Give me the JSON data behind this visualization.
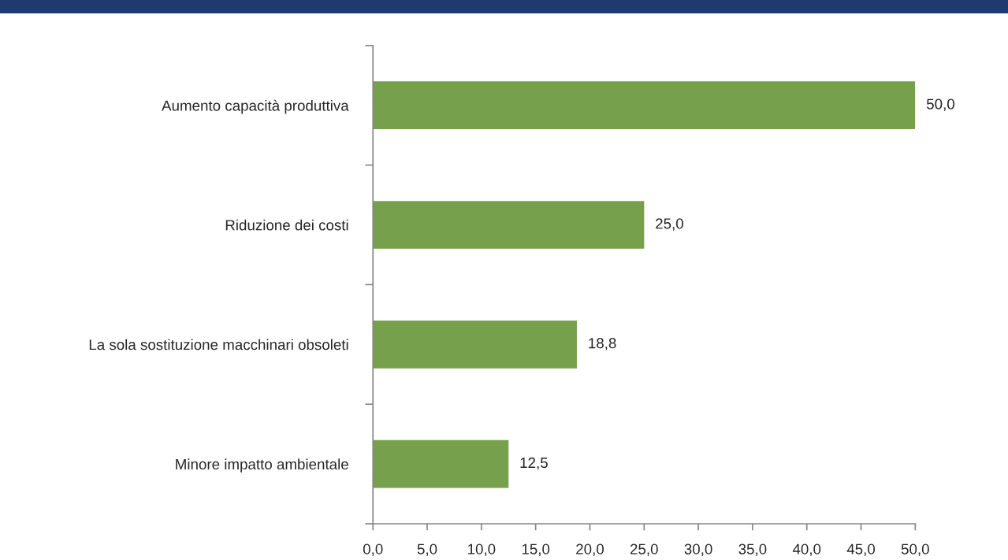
{
  "chart_data": {
    "type": "bar",
    "orientation": "horizontal",
    "categories": [
      "Aumento capacità produttiva",
      "Riduzione dei costi",
      "La sola sostituzione macchinari obsoleti",
      "Minore impatto ambientale"
    ],
    "values": [
      50.0,
      25.0,
      18.8,
      12.5
    ],
    "color": "#77a04c",
    "value_labels": [
      "50,0",
      "25,0",
      "18,8",
      "12,5"
    ],
    "xlim": [
      0,
      50
    ],
    "xticks": [
      {
        "value": 0,
        "label": "0,0"
      },
      {
        "value": 5,
        "label": "5,0"
      },
      {
        "value": 10,
        "label": "10,0"
      },
      {
        "value": 15,
        "label": "15,0"
      },
      {
        "value": 20,
        "label": "20,0"
      },
      {
        "value": 25,
        "label": "25,0"
      },
      {
        "value": 30,
        "label": "30,0"
      },
      {
        "value": 35,
        "label": "35,0"
      },
      {
        "value": 40,
        "label": "40,0"
      },
      {
        "value": 45,
        "label": "45,0"
      },
      {
        "value": 50,
        "label": "50,0"
      }
    ]
  }
}
